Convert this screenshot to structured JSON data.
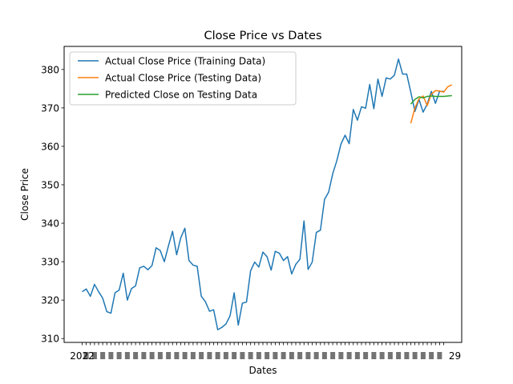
{
  "chart_data": {
    "type": "line",
    "title": "Close Price vs Dates",
    "xlabel": "Dates",
    "ylabel": "Close Price",
    "ylim": [
      309,
      386
    ],
    "y_ticks": [
      310,
      320,
      330,
      340,
      350,
      360,
      370,
      380
    ],
    "grid": false,
    "legend": "top-left",
    "x_count": 89,
    "x_tick_label_prefix": "2022",
    "x_tick_label_suffix": "29",
    "series": [
      {
        "name": "Actual Close Price (Training Data)",
        "color": "#1f77b4",
        "start_index": 0,
        "values": [
          322.2,
          322.9,
          321.0,
          324.1,
          322.2,
          320.5,
          317.0,
          316.6,
          321.9,
          322.6,
          327.0,
          320.0,
          323.0,
          323.7,
          328.4,
          328.8,
          327.9,
          329.0,
          333.6,
          332.9,
          330.0,
          334.1,
          337.9,
          331.8,
          336.2,
          338.7,
          330.3,
          329.1,
          328.8,
          321.0,
          319.6,
          317.1,
          317.5,
          312.3,
          312.9,
          313.8,
          315.9,
          321.9,
          313.5,
          319.2,
          319.5,
          327.6,
          329.9,
          328.6,
          332.5,
          331.3,
          327.8,
          332.7,
          332.2,
          330.3,
          331.3,
          326.8,
          329.3,
          330.6,
          340.6,
          328.0,
          329.9,
          337.6,
          338.2,
          346.2,
          348.1,
          352.9,
          356.3,
          360.6,
          362.9,
          360.7,
          369.6,
          366.8,
          370.3,
          369.9,
          376.1,
          369.8,
          377.5,
          373.0,
          377.8,
          377.5,
          378.5,
          382.7,
          378.8,
          378.8,
          374.1,
          369.1,
          372.2,
          368.9,
          371.0,
          374.3,
          371.2,
          374.3,
          374.3
        ]
      },
      {
        "name": "Actual Close Price (Testing Data)",
        "color": "#ff7f0e",
        "start_index": 80,
        "values": [
          366.0,
          370.0,
          372.4,
          373.1,
          370.6,
          373.6,
          374.5,
          374.4,
          374.1,
          375.5,
          376.0
        ]
      },
      {
        "name": "Predicted Close on Testing Data",
        "color": "#2ca02c",
        "start_index": 80,
        "values": [
          371.0,
          372.2,
          372.9,
          372.6,
          373.0,
          373.1,
          373.0,
          373.0,
          373.0,
          373.1,
          373.2
        ]
      }
    ]
  }
}
